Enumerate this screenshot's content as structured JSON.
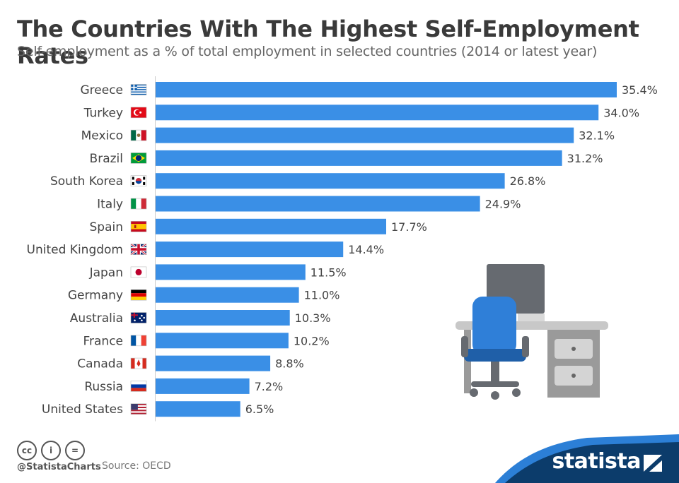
{
  "header": {
    "title": "The Countries With The Highest Self-Employment Rates",
    "subtitle": "Self-employment as a % of total employment in selected countries (2014 or latest year)"
  },
  "colors": {
    "bar": "#3a8fe6",
    "axis": "#cccccc",
    "label": "#444444",
    "footer_band": "#0c3c6b",
    "accent_wave": "#2c7fd6"
  },
  "chart_data": {
    "type": "bar",
    "orientation": "horizontal",
    "categories": [
      "Greece",
      "Turkey",
      "Mexico",
      "Brazil",
      "South Korea",
      "Italy",
      "Spain",
      "United Kingdom",
      "Japan",
      "Germany",
      "Australia",
      "France",
      "Canada",
      "Russia",
      "United States"
    ],
    "values": [
      35.4,
      34.0,
      32.1,
      31.2,
      26.8,
      24.9,
      17.7,
      14.4,
      11.5,
      11.0,
      10.3,
      10.2,
      8.8,
      7.2,
      6.5
    ],
    "value_labels": [
      "35.4%",
      "34.0%",
      "32.1%",
      "31.2%",
      "26.8%",
      "24.9%",
      "17.7%",
      "14.4%",
      "11.5%",
      "11.0%",
      "10.3%",
      "10.2%",
      "8.8%",
      "7.2%",
      "6.5%"
    ],
    "flag_icons": [
      "flag-greece-icon",
      "flag-turkey-icon",
      "flag-mexico-icon",
      "flag-brazil-icon",
      "flag-south-korea-icon",
      "flag-italy-icon",
      "flag-spain-icon",
      "flag-united-kingdom-icon",
      "flag-japan-icon",
      "flag-germany-icon",
      "flag-australia-icon",
      "flag-france-icon",
      "flag-canada-icon",
      "flag-russia-icon",
      "flag-united-states-icon"
    ],
    "xlim": [
      0,
      35.4
    ],
    "grid": false,
    "legend": "none",
    "title": "The Countries With The Highest Self-Employment Rates"
  },
  "illustration": {
    "icon": "office-desk-chair-icon"
  },
  "footer": {
    "license_icons": [
      "cc-icon",
      "by-icon",
      "nd-icon"
    ],
    "license_glyphs": [
      "cc",
      "i",
      "="
    ],
    "handle": "@StatistaCharts",
    "source": "Source: OECD",
    "brand": "statista"
  }
}
